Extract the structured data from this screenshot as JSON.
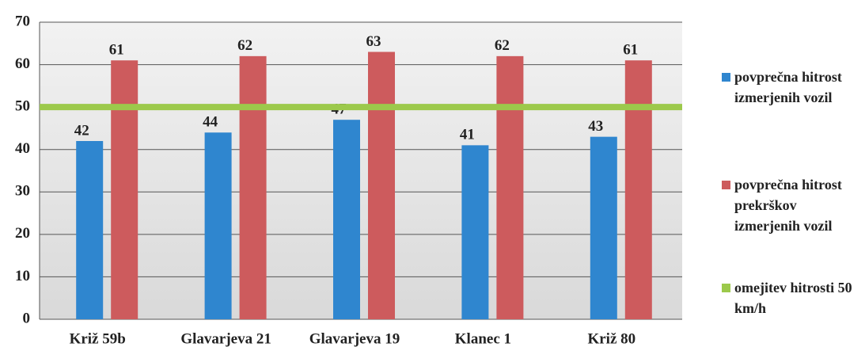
{
  "chart_data": {
    "type": "bar",
    "categories": [
      "Križ 59b",
      "Glavarjeva 21",
      "Glavarjeva 19",
      "Klanec 1",
      "Križ 80"
    ],
    "series": [
      {
        "name": "povprečna hitrost izmerjenih vozil",
        "color": "#2f86cf",
        "values": [
          42,
          44,
          47,
          41,
          43
        ]
      },
      {
        "name": "povprečna hitrost prekrškov izmerjenih vozil",
        "color": "#cd5b5d",
        "values": [
          61,
          62,
          63,
          62,
          61
        ]
      },
      {
        "name": "omejitev hitrosti 50 km/h",
        "color": "#9cc94b",
        "type": "line",
        "values": [
          50,
          50,
          50,
          50,
          50
        ]
      }
    ],
    "ylim": [
      0,
      70
    ],
    "yticks": [
      0,
      10,
      20,
      30,
      40,
      50,
      60,
      70
    ],
    "grid": true,
    "legend": "right"
  }
}
